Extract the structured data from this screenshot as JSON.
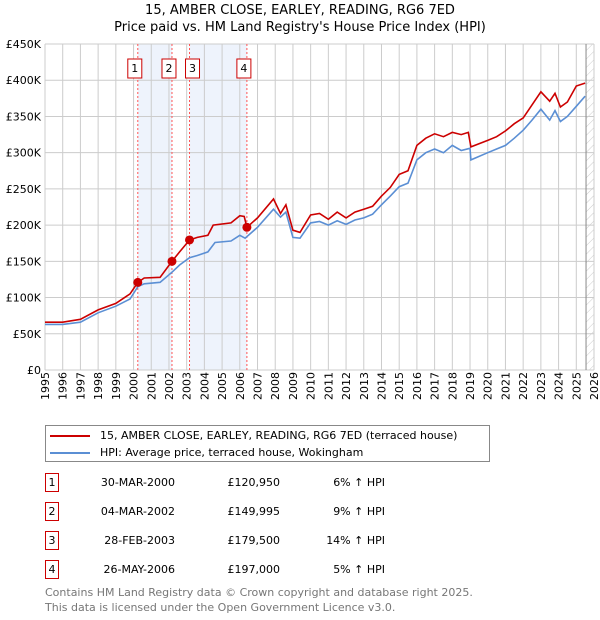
{
  "chart_data": {
    "type": "line",
    "title": "15, AMBER CLOSE, EARLEY, READING, RG6 7ED",
    "subtitle": "Price paid vs. HM Land Registry's House Price Index (HPI)",
    "xlim": [
      1995,
      2026
    ],
    "ylim": [
      0,
      450000
    ],
    "x_ticks": [
      "1995",
      "1996",
      "1997",
      "1998",
      "1999",
      "2000",
      "2001",
      "2002",
      "2003",
      "2004",
      "2005",
      "2006",
      "2007",
      "2008",
      "2009",
      "2010",
      "2011",
      "2012",
      "2013",
      "2014",
      "2015",
      "2016",
      "2017",
      "2018",
      "2019",
      "2020",
      "2021",
      "2022",
      "2023",
      "2024",
      "2025",
      "2026"
    ],
    "y_ticks": [
      {
        "v": 0,
        "label": "£0"
      },
      {
        "v": 50000,
        "label": "£50K"
      },
      {
        "v": 100000,
        "label": "£100K"
      },
      {
        "v": 150000,
        "label": "£150K"
      },
      {
        "v": 200000,
        "label": "£200K"
      },
      {
        "v": 250000,
        "label": "£250K"
      },
      {
        "v": 300000,
        "label": "£300K"
      },
      {
        "v": 350000,
        "label": "£350K"
      },
      {
        "v": 400000,
        "label": "£400K"
      },
      {
        "v": 450000,
        "label": "£450K"
      }
    ],
    "grid": true,
    "series": [
      {
        "name": "15, AMBER CLOSE, EARLEY, READING, RG6 7ED (terraced house)",
        "color": "#cc0000",
        "points": [
          [
            1995,
            66000
          ],
          [
            1996,
            66000
          ],
          [
            1997,
            70000
          ],
          [
            1998,
            83000
          ],
          [
            1999,
            92000
          ],
          [
            1999.8,
            105000
          ],
          [
            2000.24,
            120950
          ],
          [
            2000.6,
            127000
          ],
          [
            2001.5,
            128000
          ],
          [
            2002.17,
            149995
          ],
          [
            2002.6,
            163000
          ],
          [
            2003.16,
            179500
          ],
          [
            2003.6,
            183000
          ],
          [
            2004.2,
            186000
          ],
          [
            2004.5,
            200000
          ],
          [
            2005.5,
            203000
          ],
          [
            2006,
            213000
          ],
          [
            2006.25,
            212000
          ],
          [
            2006.4,
            197000
          ],
          [
            2007,
            210000
          ],
          [
            2007.9,
            236000
          ],
          [
            2008.3,
            216000
          ],
          [
            2008.6,
            228000
          ],
          [
            2009,
            193000
          ],
          [
            2009.4,
            190000
          ],
          [
            2010,
            214000
          ],
          [
            2010.5,
            216000
          ],
          [
            2011,
            208000
          ],
          [
            2011.5,
            218000
          ],
          [
            2012,
            210000
          ],
          [
            2012.5,
            218000
          ],
          [
            2013,
            222000
          ],
          [
            2013.5,
            226000
          ],
          [
            2014,
            240000
          ],
          [
            2014.5,
            252000
          ],
          [
            2015,
            270000
          ],
          [
            2015.5,
            275000
          ],
          [
            2016,
            310000
          ],
          [
            2016.5,
            320000
          ],
          [
            2017,
            326000
          ],
          [
            2017.5,
            322000
          ],
          [
            2018,
            328000
          ],
          [
            2018.5,
            325000
          ],
          [
            2018.9,
            328000
          ],
          [
            2019.05,
            308000
          ],
          [
            2020,
            317000
          ],
          [
            2020.5,
            322000
          ],
          [
            2021,
            330000
          ],
          [
            2021.5,
            340000
          ],
          [
            2022,
            348000
          ],
          [
            2022.5,
            366000
          ],
          [
            2023,
            384000
          ],
          [
            2023.5,
            371000
          ],
          [
            2023.8,
            382000
          ],
          [
            2024.1,
            363000
          ],
          [
            2024.5,
            370000
          ],
          [
            2025,
            392000
          ],
          [
            2025.5,
            396000
          ]
        ]
      },
      {
        "name": "HPI: Average price, terraced house, Wokingham",
        "color": "#5b8fd4",
        "points": [
          [
            1995,
            63000
          ],
          [
            1996,
            63000
          ],
          [
            1997,
            66000
          ],
          [
            1998,
            79000
          ],
          [
            1999,
            88000
          ],
          [
            1999.8,
            98000
          ],
          [
            2000.24,
            115000
          ],
          [
            2000.6,
            119000
          ],
          [
            2001.5,
            121000
          ],
          [
            2002.17,
            135000
          ],
          [
            2002.6,
            145000
          ],
          [
            2003.16,
            155000
          ],
          [
            2003.6,
            158000
          ],
          [
            2004.2,
            163000
          ],
          [
            2004.6,
            176000
          ],
          [
            2005.5,
            178000
          ],
          [
            2006,
            186000
          ],
          [
            2006.3,
            182000
          ],
          [
            2007,
            197000
          ],
          [
            2007.9,
            222000
          ],
          [
            2008.3,
            211000
          ],
          [
            2008.6,
            218000
          ],
          [
            2009,
            183000
          ],
          [
            2009.4,
            182000
          ],
          [
            2010,
            203000
          ],
          [
            2010.5,
            205000
          ],
          [
            2011,
            200000
          ],
          [
            2011.5,
            206000
          ],
          [
            2012,
            201000
          ],
          [
            2012.5,
            207000
          ],
          [
            2013,
            210000
          ],
          [
            2013.5,
            215000
          ],
          [
            2014,
            228000
          ],
          [
            2014.5,
            240000
          ],
          [
            2015,
            253000
          ],
          [
            2015.5,
            258000
          ],
          [
            2016,
            290000
          ],
          [
            2016.5,
            300000
          ],
          [
            2017,
            305000
          ],
          [
            2017.5,
            300000
          ],
          [
            2018,
            310000
          ],
          [
            2018.5,
            303000
          ],
          [
            2019,
            306000
          ],
          [
            2019.05,
            290000
          ],
          [
            2020,
            300000
          ],
          [
            2020.5,
            305000
          ],
          [
            2021,
            310000
          ],
          [
            2021.5,
            320000
          ],
          [
            2022,
            331000
          ],
          [
            2022.5,
            345000
          ],
          [
            2023,
            360000
          ],
          [
            2023.5,
            345000
          ],
          [
            2023.8,
            358000
          ],
          [
            2024.1,
            343000
          ],
          [
            2024.5,
            350000
          ],
          [
            2025,
            364000
          ],
          [
            2025.5,
            378000
          ]
        ]
      }
    ],
    "sales": [
      {
        "n": "1",
        "x": 2000.24,
        "y": 120950
      },
      {
        "n": "2",
        "x": 2002.17,
        "y": 149995
      },
      {
        "n": "3",
        "x": 2003.16,
        "y": 179500
      },
      {
        "n": "4",
        "x": 2006.4,
        "y": 197000
      }
    ],
    "shaded_ranges": [
      [
        2000.24,
        2002.17
      ],
      [
        2003.16,
        2006.4
      ]
    ],
    "hatched_from": 2025.55,
    "legend_position": "bottom"
  },
  "legend": {
    "property": "15, AMBER CLOSE, EARLEY, READING, RG6 7ED (terraced house)",
    "hpi": "HPI: Average price, terraced house, Wokingham"
  },
  "transactions": [
    {
      "n": "1",
      "date": "30-MAR-2000",
      "price": "£120,950",
      "hpi": "6% ↑ HPI"
    },
    {
      "n": "2",
      "date": "04-MAR-2002",
      "price": "£149,995",
      "hpi": "9% ↑ HPI"
    },
    {
      "n": "3",
      "date": "28-FEB-2003",
      "price": "£179,500",
      "hpi": "14% ↑ HPI"
    },
    {
      "n": "4",
      "date": "26-MAY-2006",
      "price": "£197,000",
      "hpi": "5% ↑ HPI"
    }
  ],
  "footer": {
    "line1": "Contains HM Land Registry data © Crown copyright and database right 2025.",
    "line2": "This data is licensed under the Open Government Licence v3.0."
  }
}
